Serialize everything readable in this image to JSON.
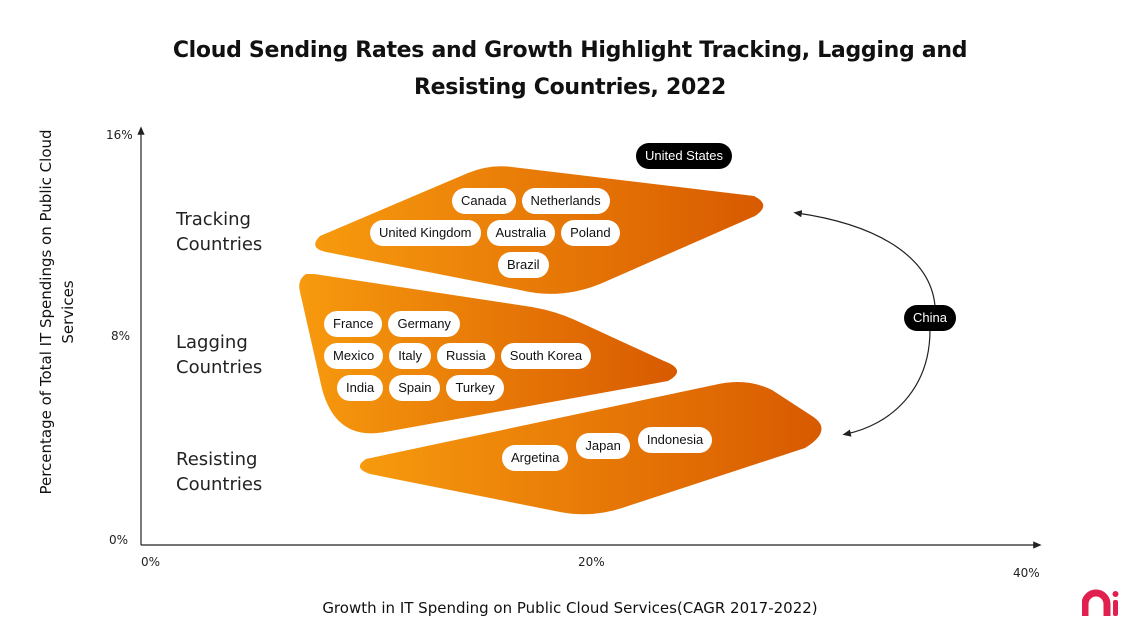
{
  "title_line1": "Cloud Sending Rates and Growth Highlight Tracking, Lagging and",
  "title_line2": "Resisting Countries, 2022",
  "y_axis": {
    "label": "Percentage of Total IT Spendings on Public Cloud Services",
    "ticks": [
      "16%",
      "8%",
      "0%"
    ]
  },
  "x_axis": {
    "label": "Growth in IT Spending on Public Cloud Services(CAGR 2017-2022)",
    "ticks": [
      "0%",
      "20%",
      "40%"
    ]
  },
  "groups": {
    "tracking": {
      "label_1": "Tracking",
      "label_2": "Countries",
      "countries": [
        "Canada",
        "Netherlands",
        "United Kingdom",
        "Australia",
        "Poland",
        "Brazil"
      ]
    },
    "lagging": {
      "label_1": "Lagging",
      "label_2": "Countries",
      "countries": [
        "France",
        "Germany",
        "Mexico",
        "Italy",
        "Russia",
        "South Korea",
        "India",
        "Spain",
        "Turkey"
      ]
    },
    "resisting": {
      "label_1": "Resisting",
      "label_2": "Countries",
      "countries": [
        "Argetina",
        "Japan",
        "Indonesia"
      ]
    }
  },
  "outliers": [
    "United States",
    "China"
  ],
  "colors": {
    "gradient_start": "#F79A0E",
    "gradient_end": "#D85A00",
    "outlier_pill": "#000000",
    "logo": "#E0214F"
  },
  "logo_text": "mi"
}
